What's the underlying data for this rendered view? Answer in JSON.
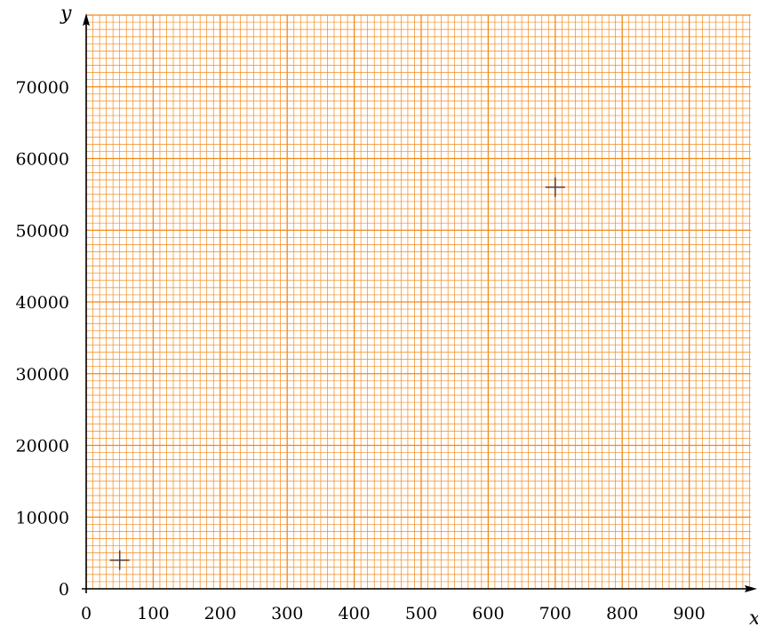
{
  "chart_data": {
    "type": "scatter",
    "xlabel": "x",
    "ylabel": "y",
    "xlim": [
      0,
      1000
    ],
    "ylim": [
      0,
      80000
    ],
    "x_ticks": [
      0,
      100,
      200,
      300,
      400,
      500,
      600,
      700,
      800,
      900
    ],
    "y_ticks": [
      0,
      10000,
      20000,
      30000,
      40000,
      50000,
      60000,
      70000
    ],
    "x_tick_labels": [
      "0",
      "100",
      "200",
      "300",
      "400",
      "500",
      "600",
      "700",
      "800",
      "900"
    ],
    "y_tick_labels": [
      "0",
      "10000",
      "20000",
      "30000",
      "40000",
      "50000",
      "60000",
      "70000"
    ],
    "grid": true,
    "grid_major_x": 100,
    "grid_minor_x": 10,
    "grid_major_y": 10000,
    "grid_minor_y": 1000,
    "grid_color": "#f08a1c",
    "marker": "plus",
    "marker_color": "#5a3a2a",
    "points": [
      {
        "x": 50,
        "y": 4000
      },
      {
        "x": 700,
        "y": 56000
      }
    ]
  }
}
